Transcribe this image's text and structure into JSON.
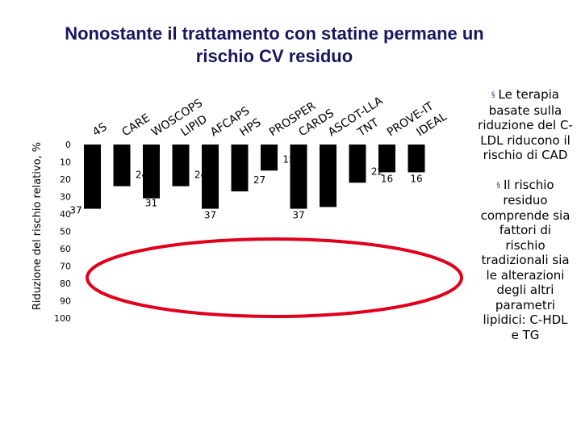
{
  "title": {
    "line1": "Nonostante il trattamento con statine permane un",
    "line2": "rischio CV residuo"
  },
  "bullets": [
    {
      "marker": "§",
      "text": "Le terapia basate sulla riduzione del C-LDL riducono il rischio di CAD"
    },
    {
      "marker": "§",
      "text": "Il rischio residuo comprende sia fattori di rischio tradizionali sia le alterazioni degli altri parametri lipidici: C-HDL e TG"
    }
  ],
  "colors": {
    "bars": "#000000",
    "ellipse": "#e0001b",
    "title": "#17175e"
  },
  "chart_data": {
    "type": "bar",
    "ylabel": "Riduzione del rischio relativo, %",
    "ylim": [
      0,
      100
    ],
    "y_inverted": true,
    "yticks": [
      0,
      10,
      20,
      30,
      40,
      50,
      60,
      70,
      80,
      90,
      100
    ],
    "categories": [
      "4S",
      "CARE",
      "WOSCOPS",
      "LIPID",
      "AFCAPS",
      "HPS",
      "PROSPER",
      "CARDS",
      "ASCOT-LLA",
      "TNT",
      "PROVE-IT",
      "IDEAL"
    ],
    "values": [
      37,
      24,
      31,
      24,
      37,
      27,
      15,
      37,
      36,
      22,
      16,
      16
    ],
    "annotations": [
      "red ellipse highlighting residual risk region (40–100%)"
    ]
  }
}
